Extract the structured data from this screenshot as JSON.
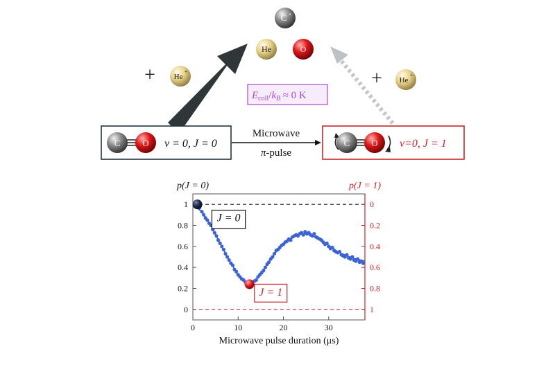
{
  "colors": {
    "dark_navy": "#1f3445",
    "red": "#c8262b",
    "purple": "#a64bd0",
    "purple_bg": "#f6ecfb",
    "blue_points": "#3a63d8",
    "blue_fit": "#2447b8",
    "grey_arrow": "#2e3638",
    "light_grey_arrow": "#bfc2c4"
  },
  "molecules": {
    "c_plus": "C",
    "c_plus_sup": "+",
    "he_center": "He",
    "o_center": "O",
    "he_plus_left": "He",
    "he_plus_left_sup": "+",
    "he_plus_right": "He",
    "he_plus_right_sup": "+",
    "plus_left": "+",
    "plus_right": "+"
  },
  "energy_box": {
    "E": "E",
    "E_sub": "coll",
    "slash": "/",
    "k": "k",
    "k_sub": "B",
    "approx": "≈ 0 K"
  },
  "state_boxes": {
    "left": {
      "c": "C",
      "o": "O",
      "label": "v = 0, J = 0"
    },
    "right": {
      "c": "C",
      "o": "O",
      "label": "v=0, J = 1"
    }
  },
  "transition": {
    "line1": "Microwave",
    "line2_pi": "π",
    "line2_rest": "-pulse"
  },
  "chart_data": {
    "type": "scatter",
    "xlabel": "Microwave pulse duration (μs)",
    "ylabel_left": "p(J = 0)",
    "ylabel_right": "p(J = 1)",
    "xlim": [
      0,
      38
    ],
    "ylim": [
      -0.1,
      1.1
    ],
    "x_ticks": [
      0,
      10,
      20,
      30
    ],
    "y_ticks_left": [
      0,
      0.2,
      0.4,
      0.6,
      0.8,
      1
    ],
    "y_ticks_right": [
      "1",
      "0.8",
      "0.6",
      "0.4",
      "0.2",
      "0"
    ],
    "reference_lines": [
      1,
      0
    ],
    "label_J0": "J = 0",
    "label_J1": "J = 1",
    "highlight_start": {
      "x": 1,
      "y": 1.0
    },
    "highlight_min": {
      "x": 12.5,
      "y": 0.24
    },
    "fit": {
      "x": [
        0.5,
        2,
        4,
        6,
        8,
        10,
        11,
        12,
        12.5,
        13,
        14,
        16,
        18,
        20,
        22,
        24,
        25,
        26,
        28,
        30,
        32,
        34,
        36,
        38
      ],
      "y": [
        0.98,
        0.93,
        0.8,
        0.63,
        0.47,
        0.33,
        0.28,
        0.255,
        0.25,
        0.26,
        0.29,
        0.4,
        0.53,
        0.63,
        0.69,
        0.72,
        0.72,
        0.71,
        0.67,
        0.61,
        0.55,
        0.51,
        0.48,
        0.46
      ]
    },
    "points": {
      "x": [
        1.0,
        1.5,
        2.0,
        2.4,
        2.8,
        3.2,
        3.6,
        4.0,
        4.4,
        4.8,
        5.2,
        5.6,
        6.0,
        6.4,
        6.8,
        7.2,
        7.6,
        8.0,
        8.4,
        8.8,
        9.2,
        9.6,
        10.0,
        10.4,
        10.8,
        11.2,
        11.6,
        12.0,
        12.4,
        12.8,
        13.2,
        13.6,
        14.0,
        14.4,
        14.8,
        15.2,
        15.6,
        16.0,
        16.4,
        16.8,
        17.2,
        17.6,
        18.0,
        18.4,
        18.8,
        19.2,
        19.6,
        20.0,
        20.4,
        20.8,
        21.2,
        21.6,
        22.0,
        22.4,
        22.8,
        23.2,
        23.6,
        24.0,
        24.4,
        24.8,
        25.2,
        25.6,
        26.0,
        26.4,
        26.8,
        27.2,
        27.6,
        28.0,
        28.4,
        28.8,
        29.2,
        29.6,
        30.0,
        30.4,
        30.8,
        31.2,
        31.6,
        32.0,
        32.4,
        32.8,
        33.2,
        33.6,
        34.0,
        34.4,
        34.8,
        35.2,
        35.6,
        36.0,
        36.4,
        36.8,
        37.2,
        37.6
      ],
      "y": [
        1.01,
        0.97,
        0.93,
        0.9,
        0.87,
        0.85,
        0.82,
        0.8,
        0.76,
        0.73,
        0.7,
        0.66,
        0.63,
        0.6,
        0.57,
        0.53,
        0.5,
        0.47,
        0.44,
        0.42,
        0.38,
        0.36,
        0.33,
        0.31,
        0.29,
        0.28,
        0.26,
        0.25,
        0.24,
        0.25,
        0.26,
        0.27,
        0.28,
        0.31,
        0.33,
        0.35,
        0.37,
        0.4,
        0.43,
        0.45,
        0.48,
        0.5,
        0.53,
        0.56,
        0.57,
        0.59,
        0.61,
        0.62,
        0.64,
        0.65,
        0.67,
        0.66,
        0.69,
        0.7,
        0.71,
        0.7,
        0.72,
        0.73,
        0.71,
        0.74,
        0.72,
        0.73,
        0.71,
        0.7,
        0.72,
        0.69,
        0.68,
        0.67,
        0.66,
        0.64,
        0.62,
        0.63,
        0.6,
        0.58,
        0.59,
        0.56,
        0.55,
        0.54,
        0.55,
        0.52,
        0.51,
        0.5,
        0.52,
        0.49,
        0.48,
        0.5,
        0.47,
        0.46,
        0.48,
        0.45,
        0.46,
        0.44
      ]
    }
  }
}
